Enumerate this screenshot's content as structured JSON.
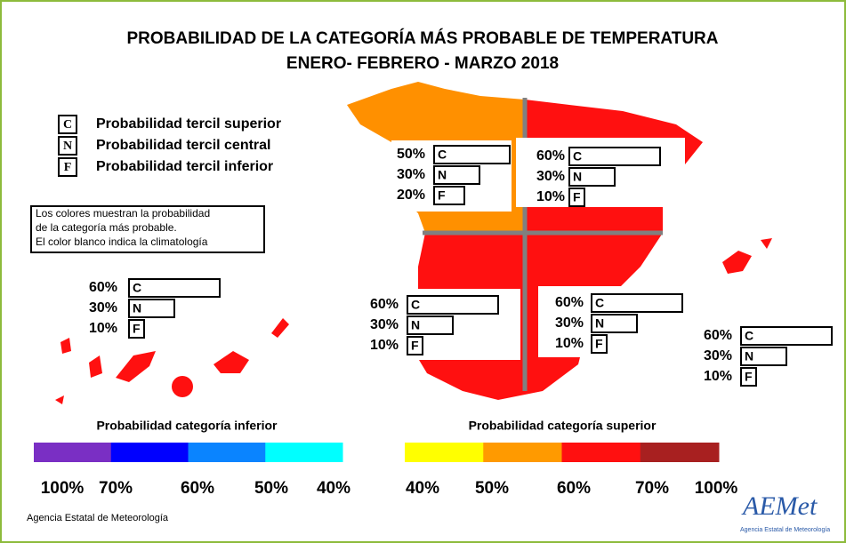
{
  "title": [
    "PROBABILIDAD DE LA CATEGORÍA MÁS PROBABLE DE TEMPERATURA",
    "ENERO- FEBRERO - MARZO 2018"
  ],
  "legend": [
    {
      "letter": "C",
      "text": "Probabilidad  tercil superior"
    },
    {
      "letter": "N",
      "text": "Probabilidad  tercil central"
    },
    {
      "letter": "F",
      "text": "Probabilidad  tercil inferior"
    }
  ],
  "note": [
    "Los colores muestran la probabilidad",
    "de la categoría más probable.",
    "El color blanco indica la climatología"
  ],
  "regions": [
    {
      "values": [
        50,
        30,
        20
      ],
      "value_labels": [
        "50%",
        "30%",
        "20%"
      ]
    },
    {
      "values": [
        60,
        30,
        10
      ],
      "value_labels": [
        "60%",
        "30%",
        "10%"
      ]
    },
    {
      "values": [
        60,
        30,
        10
      ],
      "value_labels": [
        "60%",
        "30%",
        "10%"
      ]
    },
    {
      "values": [
        60,
        30,
        10
      ],
      "value_labels": [
        "60%",
        "30%",
        "10%"
      ]
    },
    {
      "values": [
        60,
        30,
        10
      ],
      "value_labels": [
        "60%",
        "30%",
        "10%"
      ]
    },
    {
      "values": [
        60,
        30,
        10
      ],
      "value_labels": [
        "60%",
        "30%",
        "10%"
      ]
    }
  ],
  "scales": [
    {
      "title": "Probabilidad categoría inferior",
      "colors": [
        "#7a2fc4",
        "#0000ff",
        "#0a84ff",
        "#00ffff"
      ],
      "labels": [
        "100%",
        "70%",
        "60%",
        "50%",
        "40%"
      ]
    },
    {
      "title": "Probabilidad categoría superior",
      "colors": [
        "#ffff00",
        "#ff9a00",
        "#ff1010",
        "#a82020"
      ],
      "labels": [
        "40%",
        "50%",
        "60%",
        "70%",
        "100%"
      ]
    }
  ],
  "footer": "Agencia Estatal de Meteorología",
  "logo": {
    "name": "AEMet",
    "subtitle": "Agencia Estatal de Meteorología"
  }
}
